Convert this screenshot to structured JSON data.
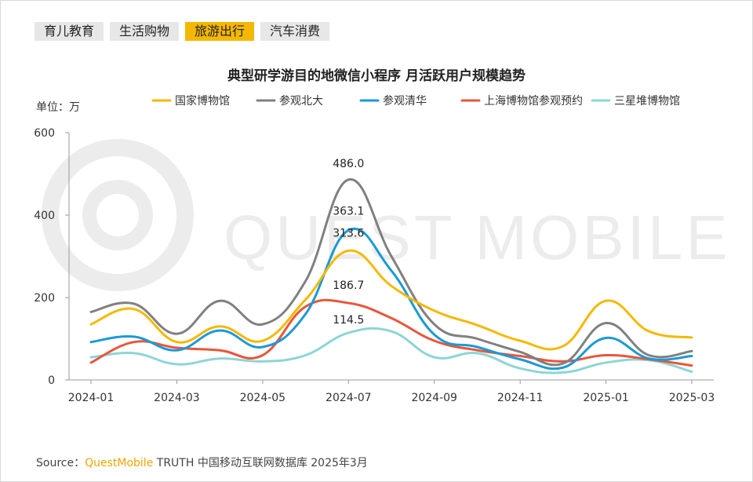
{
  "tabs": [
    {
      "label": "育儿教育",
      "active": false
    },
    {
      "label": "生活购物",
      "active": false
    },
    {
      "label": "旅游出行",
      "active": true
    },
    {
      "label": "汽车消费",
      "active": false
    }
  ],
  "watermark": "QUEST MOBILE",
  "unit_label": "单位：万",
  "source": {
    "prefix": "Source：",
    "brand": "QuestMobile",
    "text": "TRUTH 中国移动互联网数据库 2025年3月"
  },
  "colors": {
    "accent": "#f5b800",
    "tab_bg": "#e7e7e7"
  },
  "chart_data": {
    "type": "line",
    "title": "典型研学游目的地微信小程序 月活跃用户规模趋势",
    "ylabel": "单位：万",
    "ylim": [
      0,
      600
    ],
    "yticks": [
      0,
      200,
      400,
      600
    ],
    "x": [
      "2024-01",
      "2024-02",
      "2024-03",
      "2024-04",
      "2024-05",
      "2024-06",
      "2024-07",
      "2024-08",
      "2024-09",
      "2024-10",
      "2024-11",
      "2024-12",
      "2025-01",
      "2025-02",
      "2025-03"
    ],
    "xtick_labels": [
      "2024-01",
      "2024-03",
      "2024-05",
      "2024-07",
      "2024-09",
      "2024-11",
      "2025-01",
      "2025-03"
    ],
    "legend_position": "top",
    "series": [
      {
        "name": "国家博物馆",
        "color": "#f5b800",
        "values": [
          135,
          172,
          92,
          130,
          95,
          195,
          313.6,
          228,
          168,
          133,
          95,
          82,
          192,
          118,
          103
        ]
      },
      {
        "name": "参观北大",
        "color": "#808080",
        "values": [
          165,
          185,
          112,
          192,
          135,
          240,
          486.0,
          300,
          135,
          100,
          68,
          40,
          138,
          60,
          70
        ]
      },
      {
        "name": "参观清华",
        "color": "#1a9ad6",
        "values": [
          92,
          105,
          72,
          120,
          80,
          160,
          363.1,
          265,
          110,
          80,
          50,
          30,
          102,
          52,
          58
        ]
      },
      {
        "name": "上海博物馆参观预约",
        "color": "#e8563a",
        "values": [
          42,
          92,
          78,
          72,
          60,
          178,
          186.7,
          150,
          95,
          72,
          58,
          45,
          60,
          50,
          35
        ]
      },
      {
        "name": "三星堆博物馆",
        "color": "#8ed5d5",
        "values": [
          55,
          65,
          38,
          52,
          45,
          60,
          114.5,
          118,
          55,
          65,
          28,
          18,
          42,
          48,
          20
        ]
      }
    ],
    "data_labels": [
      {
        "series": "参观北大",
        "x": "2024-07",
        "text": "486.0"
      },
      {
        "series": "参观清华",
        "x": "2024-07",
        "text": "363.1"
      },
      {
        "series": "国家博物馆",
        "x": "2024-07",
        "text": "313.6"
      },
      {
        "series": "上海博物馆参观预约",
        "x": "2024-07",
        "text": "186.7"
      },
      {
        "series": "三星堆博物馆",
        "x": "2024-07",
        "text": "114.5"
      }
    ]
  }
}
